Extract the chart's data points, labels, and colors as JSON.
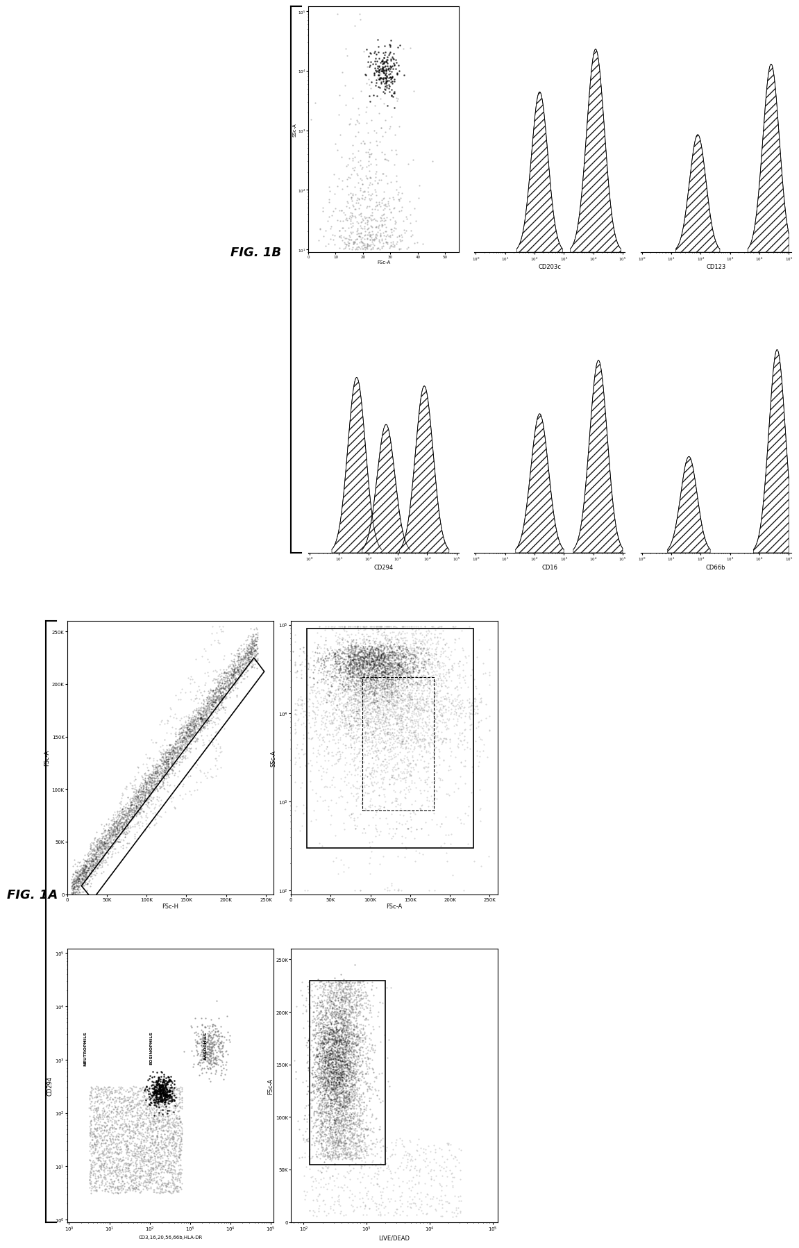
{
  "fig_width": 12.4,
  "fig_height": 19.67,
  "background": "#ffffff",
  "fig1A_label": "FIG. 1A",
  "fig1B_label": "FIG. 1B",
  "plot1_xlabel": "FSc-H",
  "plot1_ylabel": "FSc-A",
  "plot1_xticks": [
    "0",
    "50K",
    "100K",
    "150K",
    "200K",
    "250K"
  ],
  "plot1_yticks": [
    "0",
    "50K",
    "100K",
    "150K",
    "200K",
    "250K"
  ],
  "plot2_xlabel": "FSc-A",
  "plot2_ylabel": "SSc-A",
  "plot3_xlabel": "CD3,16,20,56,66b,HLA-DR",
  "plot3_ylabel": "CD294",
  "plot3_labels": [
    "NEUTROPHILS",
    "EOSINOPHILS",
    "BASOPHILS"
  ],
  "plot4_xlabel": "LIVE/DEAD",
  "plot4_ylabel": "FSc-A",
  "plot4_yticks": [
    "0",
    "50K",
    "100K",
    "150K",
    "200K",
    "250K"
  ],
  "hist1_xlabel": "SSc-A",
  "hist1_ylabel": "FSc-A",
  "hist1_yticks": [
    "0",
    "10",
    "20",
    "30",
    "40",
    "50"
  ],
  "hist2_xlabel": "CD203c",
  "hist3_xlabel": "CD123",
  "hist4_xlabel": "CD294",
  "hist5_xlabel": "CD16",
  "hist6_xlabel": "CD66b"
}
